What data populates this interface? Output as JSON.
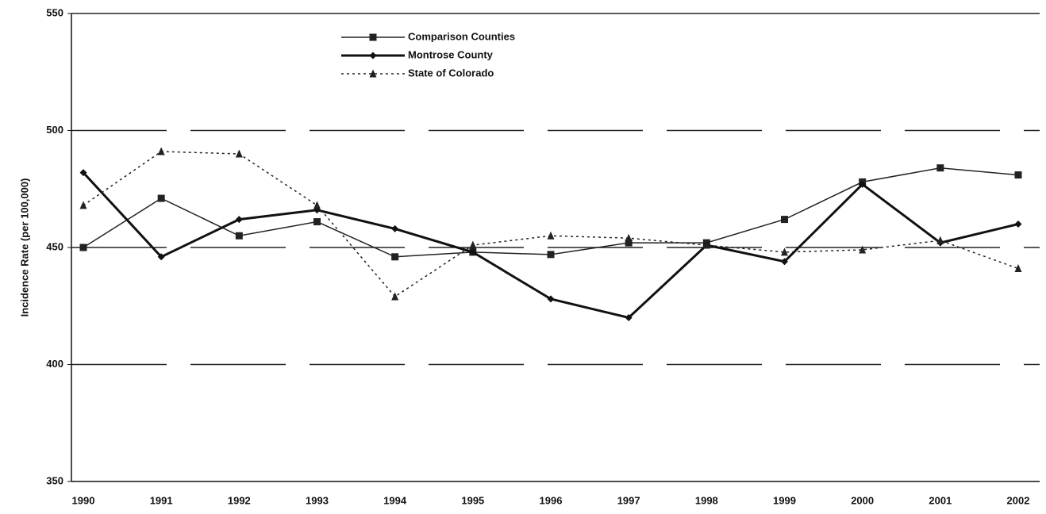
{
  "chart_data": {
    "type": "line",
    "y_label": "Incidence Rate (per 100,000)",
    "x": [
      "1990",
      "1991",
      "1992",
      "1993",
      "1994",
      "1995",
      "1996",
      "1997",
      "1998",
      "1999",
      "2000",
      "2001",
      "2002"
    ],
    "series": [
      {
        "name": "Comparison Counties",
        "color": "#222222",
        "marker": "square",
        "line_style": "solid",
        "line_width": 1.5,
        "values": [
          450,
          471,
          455,
          461,
          446,
          448,
          447,
          452,
          452,
          462,
          478,
          484,
          481
        ]
      },
      {
        "name": "Montrose County",
        "color": "#111111",
        "marker": "diamond",
        "line_style": "solid",
        "line_width": 3,
        "values": [
          482,
          446,
          462,
          466,
          458,
          448,
          428,
          420,
          451,
          444,
          477,
          452,
          460
        ]
      },
      {
        "name": "State of Colorado",
        "color": "#222222",
        "marker": "triangle",
        "line_style": "dotted",
        "line_width": 1.5,
        "values": [
          468,
          491,
          490,
          468,
          429,
          451,
          455,
          454,
          451,
          448,
          449,
          453,
          441
        ]
      }
    ],
    "ylim": [
      350,
      550
    ],
    "yticks": [
      350,
      400,
      450,
      500,
      550
    ],
    "grid": true,
    "legend": "top"
  }
}
